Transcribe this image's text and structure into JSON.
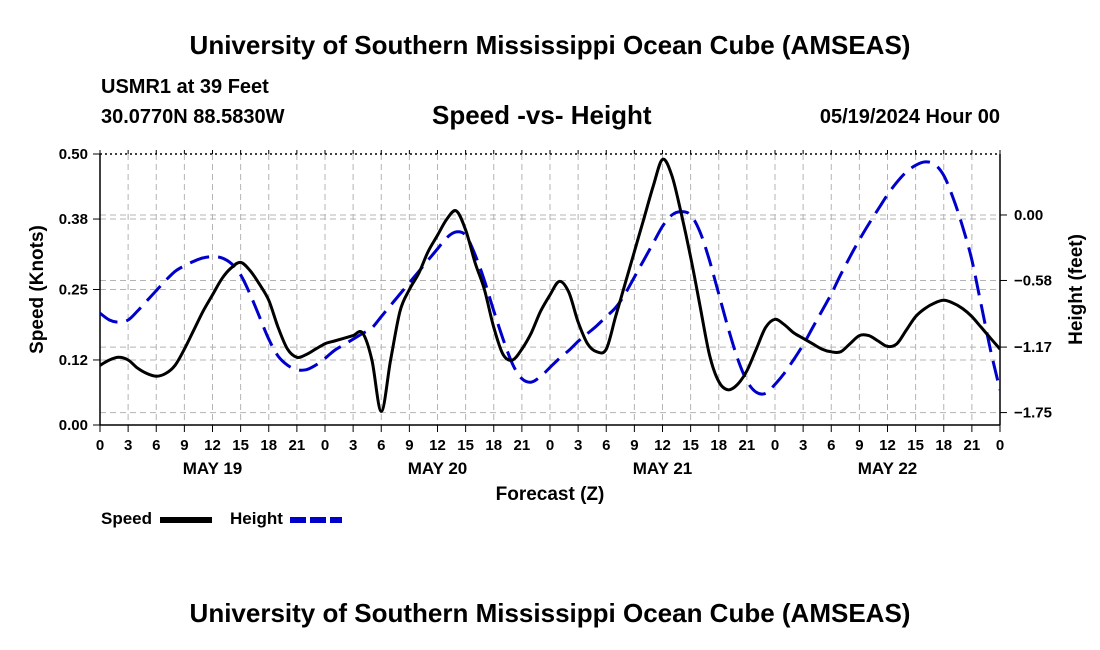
{
  "header": {
    "title": "University of Southern Mississippi Ocean Cube (AMSEAS)",
    "station": "USMR1 at 39 Feet",
    "coords": "30.0770N  88.5830W",
    "subtitle": "Speed -vs- Height",
    "date": "05/19/2024 Hour 00"
  },
  "footer": {
    "title": "University of Southern Mississippi Ocean Cube (AMSEAS)"
  },
  "colors": {
    "speed": "#000000",
    "height": "#0000cc",
    "grid": "#b4b4b4"
  },
  "chart_data": {
    "type": "line",
    "xlabel": "Forecast (Z)",
    "ylabel_left": "Speed (Knots)",
    "ylabel_right": "Height (feet)",
    "x_range_hours": [
      0,
      96
    ],
    "x_tick_labels": [
      "0",
      "3",
      "6",
      "9",
      "12",
      "15",
      "18",
      "21",
      "0",
      "3",
      "6",
      "9",
      "12",
      "15",
      "18",
      "21",
      "0",
      "3",
      "6",
      "9",
      "12",
      "15",
      "18",
      "21",
      "0",
      "3",
      "6",
      "9",
      "12",
      "15",
      "18",
      "21",
      "0"
    ],
    "x_tick_step_hours": 3,
    "day_labels": [
      {
        "label": "MAY 19",
        "hour": 12
      },
      {
        "label": "MAY 20",
        "hour": 36
      },
      {
        "label": "MAY 21",
        "hour": 60
      },
      {
        "label": "MAY 22",
        "hour": 84
      }
    ],
    "y_left": {
      "range": [
        0,
        0.5
      ],
      "ticks": [
        "0.00",
        "0.12",
        "0.25",
        "0.38",
        "0.50"
      ]
    },
    "y_right": {
      "range": [
        -1.86,
        0.54
      ],
      "ticks": [
        {
          "label": "0.00",
          "value": 0.0
        },
        {
          "label": "−0.58",
          "value": -0.58
        },
        {
          "label": "−1.17",
          "value": -1.17
        },
        {
          "label": "−1.75",
          "value": -1.75
        }
      ]
    },
    "series": [
      {
        "name": "Speed",
        "axis": "left",
        "style": "solid",
        "x": [
          0,
          1,
          2,
          3,
          4,
          5,
          6,
          7,
          8,
          9,
          10,
          11,
          12,
          13,
          14,
          15,
          16,
          17,
          18,
          19,
          20,
          21,
          22,
          23,
          24,
          25,
          26,
          27,
          28,
          29,
          30,
          31,
          32,
          33,
          34,
          35,
          36,
          37,
          38,
          39,
          40,
          41,
          42,
          43,
          44,
          45,
          46,
          47,
          48,
          49,
          50,
          51,
          52,
          53,
          54,
          55,
          56,
          57,
          58,
          59,
          60,
          61,
          62,
          63,
          64,
          65,
          66,
          67,
          68,
          69,
          70,
          71,
          72,
          73,
          74,
          75,
          76,
          77,
          78,
          79,
          80,
          81,
          82,
          83,
          84,
          85,
          86,
          87,
          88,
          89,
          90,
          91,
          92,
          93,
          94,
          95,
          96
        ],
        "values": [
          0.11,
          0.12,
          0.125,
          0.12,
          0.105,
          0.095,
          0.09,
          0.095,
          0.11,
          0.14,
          0.175,
          0.21,
          0.24,
          0.27,
          0.29,
          0.3,
          0.285,
          0.26,
          0.23,
          0.18,
          0.14,
          0.125,
          0.13,
          0.14,
          0.15,
          0.155,
          0.16,
          0.165,
          0.17,
          0.12,
          0.025,
          0.12,
          0.21,
          0.25,
          0.28,
          0.32,
          0.35,
          0.38,
          0.395,
          0.36,
          0.3,
          0.25,
          0.18,
          0.13,
          0.12,
          0.14,
          0.17,
          0.21,
          0.24,
          0.265,
          0.245,
          0.19,
          0.15,
          0.135,
          0.14,
          0.2,
          0.26,
          0.32,
          0.38,
          0.44,
          0.49,
          0.46,
          0.39,
          0.31,
          0.22,
          0.13,
          0.08,
          0.065,
          0.075,
          0.1,
          0.14,
          0.18,
          0.195,
          0.185,
          0.17,
          0.16,
          0.15,
          0.14,
          0.135,
          0.135,
          0.15,
          0.165,
          0.165,
          0.155,
          0.145,
          0.15,
          0.175,
          0.2,
          0.215,
          0.225,
          0.23,
          0.225,
          0.215,
          0.2,
          0.18,
          0.16,
          0.14
        ]
      },
      {
        "name": "Height",
        "axis": "right",
        "style": "dashed",
        "x": [
          0,
          1,
          2,
          3,
          4,
          5,
          6,
          7,
          8,
          9,
          10,
          11,
          12,
          13,
          14,
          15,
          16,
          17,
          18,
          19,
          20,
          21,
          22,
          23,
          24,
          25,
          26,
          27,
          28,
          29,
          30,
          31,
          32,
          33,
          34,
          35,
          36,
          37,
          38,
          39,
          40,
          41,
          42,
          43,
          44,
          45,
          46,
          47,
          48,
          49,
          50,
          51,
          52,
          53,
          54,
          55,
          56,
          57,
          58,
          59,
          60,
          61,
          62,
          63,
          64,
          65,
          66,
          67,
          68,
          69,
          70,
          71,
          72,
          73,
          74,
          75,
          76,
          77,
          78,
          79,
          80,
          81,
          82,
          83,
          84,
          85,
          86,
          87,
          88,
          89,
          90,
          91,
          92,
          93,
          94,
          95,
          96
        ],
        "values": [
          -0.87,
          -0.93,
          -0.95,
          -0.93,
          -0.85,
          -0.76,
          -0.67,
          -0.58,
          -0.5,
          -0.45,
          -0.41,
          -0.38,
          -0.37,
          -0.38,
          -0.43,
          -0.53,
          -0.7,
          -0.9,
          -1.1,
          -1.25,
          -1.33,
          -1.37,
          -1.37,
          -1.33,
          -1.27,
          -1.2,
          -1.15,
          -1.1,
          -1.05,
          -1.0,
          -0.9,
          -0.8,
          -0.7,
          -0.6,
          -0.5,
          -0.4,
          -0.3,
          -0.2,
          -0.15,
          -0.18,
          -0.35,
          -0.58,
          -0.85,
          -1.1,
          -1.32,
          -1.45,
          -1.48,
          -1.43,
          -1.35,
          -1.27,
          -1.2,
          -1.12,
          -1.05,
          -0.98,
          -0.9,
          -0.82,
          -0.7,
          -0.55,
          -0.4,
          -0.25,
          -0.1,
          0.0,
          0.03,
          0.0,
          -0.15,
          -0.4,
          -0.7,
          -1.0,
          -1.27,
          -1.47,
          -1.57,
          -1.58,
          -1.5,
          -1.4,
          -1.28,
          -1.15,
          -1.0,
          -0.85,
          -0.7,
          -0.53,
          -0.37,
          -0.22,
          -0.08,
          0.05,
          0.18,
          0.29,
          0.38,
          0.44,
          0.47,
          0.45,
          0.35,
          0.15,
          -0.1,
          -0.4,
          -0.8,
          -1.2,
          -1.55
        ]
      }
    ]
  }
}
